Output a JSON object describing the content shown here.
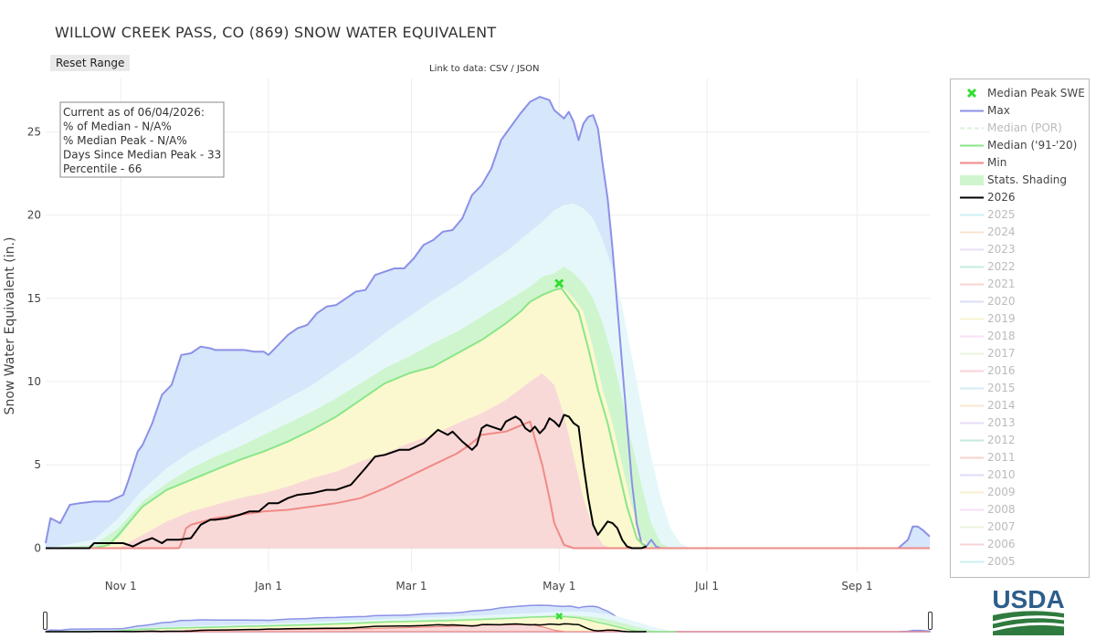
{
  "page": {
    "title": "WILLOW CREEK PASS, CO (869) SNOW WATER EQUIVALENT",
    "reset_label": "Reset Range",
    "links_prefix": "Link to data: ",
    "link_csv": "CSV",
    "link_sep": " / ",
    "link_json": "JSON"
  },
  "info_box": {
    "lines": [
      "Current as of 06/04/2026:",
      "% of Median - N/A%",
      "% Median Peak - N/A%",
      "Days Since Median Peak - 33",
      "Percentile - 66"
    ]
  },
  "logo_text": "USDA",
  "colors": {
    "max": "#8c91e6",
    "median": "#8ae68a",
    "min": "#ef8a86",
    "current": "#000000",
    "median_peak": "#33dd33",
    "shade_max": "#d6e6fb",
    "shade_80": "#e6f7fa",
    "shade_70": "#cff5cf",
    "shade_50": "#fbf8cf",
    "shade_30": "#f9d9d7"
  },
  "chart_data": {
    "type": "line",
    "title": "WILLOW CREEK PASS, CO (869) SNOW WATER EQUIVALENT",
    "xlabel": "",
    "ylabel": "Snow Water Equivalent (in.)",
    "x_unit": "days since Oct 1",
    "xlim": [
      0,
      365
    ],
    "ylim": [
      -1.4,
      28.2
    ],
    "x_ticks": [
      {
        "x": 31,
        "label": "Nov 1"
      },
      {
        "x": 92,
        "label": "Jan 1"
      },
      {
        "x": 151,
        "label": "Mar 1"
      },
      {
        "x": 212,
        "label": "May 1"
      },
      {
        "x": 273,
        "label": "Jul 1"
      },
      {
        "x": 335,
        "label": "Sep 1"
      }
    ],
    "y_ticks": [
      0,
      5,
      10,
      15,
      20,
      25
    ],
    "grid": true,
    "legend_position": "right",
    "series": [
      {
        "name": "Max",
        "x": [
          0,
          2,
          6,
          10,
          14,
          20,
          26,
          32,
          34,
          38,
          40,
          44,
          48,
          52,
          56,
          60,
          64,
          68,
          70,
          74,
          78,
          82,
          86,
          90,
          92,
          96,
          100,
          104,
          108,
          112,
          116,
          120,
          124,
          128,
          132,
          136,
          140,
          144,
          148,
          152,
          156,
          160,
          164,
          168,
          172,
          176,
          180,
          184,
          188,
          192,
          196,
          200,
          204,
          208,
          210,
          214,
          216,
          218,
          220,
          222,
          224,
          226,
          228,
          230,
          232,
          234,
          238,
          240,
          242,
          244,
          246,
          248,
          250,
          252,
          254,
          256,
          258,
          260,
          262,
          264,
          266,
          268,
          270,
          290,
          320,
          340,
          352,
          356,
          358,
          360,
          362,
          365
        ],
        "values": [
          0.3,
          1.8,
          1.5,
          2.6,
          2.7,
          2.8,
          2.8,
          3.2,
          4.0,
          5.8,
          6.2,
          7.5,
          9.2,
          9.8,
          11.6,
          11.7,
          12.1,
          12.0,
          11.9,
          11.9,
          11.9,
          11.9,
          11.8,
          11.8,
          11.6,
          12.2,
          12.8,
          13.2,
          13.4,
          14.1,
          14.5,
          14.6,
          15.0,
          15.4,
          15.5,
          16.4,
          16.6,
          16.8,
          16.8,
          17.4,
          18.2,
          18.5,
          19.0,
          19.1,
          19.8,
          21.2,
          21.8,
          22.8,
          24.5,
          25.3,
          26.1,
          26.8,
          27.1,
          26.9,
          26.3,
          25.8,
          26.2,
          25.6,
          24.5,
          25.5,
          25.9,
          26.0,
          25.2,
          23.0,
          21.0,
          18.0,
          11.0,
          7.5,
          4.0,
          1.5,
          0.3,
          0.1,
          0.5,
          0.1,
          0.0,
          0.0,
          0.0,
          0.0,
          0.0,
          0.0,
          0.0,
          0.0,
          0.0,
          0.0,
          0.0,
          0.0,
          0.0,
          0.5,
          1.3,
          1.3,
          1.1,
          0.7
        ]
      },
      {
        "name": "Median ('91-'20)",
        "x": [
          0,
          10,
          20,
          26,
          30,
          40,
          50,
          60,
          70,
          80,
          90,
          100,
          110,
          120,
          130,
          140,
          150,
          160,
          170,
          180,
          190,
          196,
          200,
          205,
          210,
          213,
          216,
          220,
          224,
          228,
          232,
          236,
          240,
          244,
          248,
          252,
          256,
          260
        ],
        "values": [
          0.0,
          0.0,
          0.0,
          0.2,
          0.8,
          2.5,
          3.5,
          4.1,
          4.7,
          5.3,
          5.8,
          6.4,
          7.1,
          7.9,
          8.9,
          9.9,
          10.5,
          10.9,
          11.7,
          12.5,
          13.5,
          14.2,
          14.8,
          15.2,
          15.5,
          15.6,
          15.0,
          14.2,
          12.0,
          9.5,
          7.5,
          5.0,
          2.5,
          0.6,
          0.0,
          0.0,
          0.0,
          0.0
        ]
      },
      {
        "name": "Min",
        "x": [
          0,
          40,
          50,
          55,
          56,
          58,
          60,
          70,
          80,
          90,
          100,
          110,
          120,
          130,
          140,
          150,
          160,
          170,
          175,
          180,
          190,
          195,
          200,
          205,
          208,
          210,
          214,
          218,
          220,
          240,
          300,
          365
        ],
        "values": [
          0.0,
          0.0,
          0.0,
          0.0,
          0.3,
          1.2,
          1.4,
          1.8,
          2.0,
          2.2,
          2.3,
          2.5,
          2.7,
          3.0,
          3.6,
          4.3,
          5.0,
          5.7,
          6.2,
          6.8,
          7.0,
          7.3,
          7.6,
          5.0,
          3.0,
          1.5,
          0.2,
          0.0,
          0.0,
          0.0,
          0.0,
          0.0
        ]
      },
      {
        "name": "2026",
        "x": [
          0,
          18,
          20,
          32,
          36,
          40,
          44,
          48,
          50,
          55,
          60,
          64,
          68,
          70,
          75,
          80,
          84,
          88,
          92,
          96,
          100,
          104,
          110,
          116,
          120,
          126,
          132,
          136,
          140,
          146,
          150,
          156,
          162,
          166,
          168,
          172,
          176,
          178,
          180,
          182,
          184,
          188,
          190,
          194,
          196,
          198,
          200,
          202,
          204,
          206,
          208,
          210,
          212,
          214,
          216,
          218,
          220,
          222,
          224,
          226,
          228,
          230,
          232,
          234,
          236,
          238,
          240,
          242,
          244,
          246,
          248
        ],
        "values": [
          0.0,
          0.0,
          0.3,
          0.3,
          0.1,
          0.4,
          0.6,
          0.3,
          0.5,
          0.5,
          0.6,
          1.4,
          1.7,
          1.7,
          1.8,
          2.0,
          2.2,
          2.2,
          2.7,
          2.7,
          3.0,
          3.2,
          3.3,
          3.5,
          3.5,
          3.8,
          4.8,
          5.5,
          5.6,
          5.9,
          5.9,
          6.3,
          7.1,
          6.8,
          7.0,
          6.4,
          5.9,
          6.2,
          7.2,
          7.4,
          7.3,
          7.1,
          7.6,
          7.9,
          7.7,
          7.2,
          7.0,
          7.3,
          6.9,
          7.2,
          7.8,
          7.6,
          7.3,
          8.0,
          7.9,
          7.5,
          7.3,
          5.0,
          3.0,
          1.4,
          0.8,
          1.2,
          1.6,
          1.5,
          1.2,
          0.5,
          0.1,
          0.0,
          0.0,
          0.0,
          0.1
        ]
      }
    ],
    "percentile_bands": {
      "x": [
        0,
        20,
        30,
        40,
        50,
        60,
        70,
        80,
        90,
        100,
        110,
        120,
        130,
        140,
        150,
        160,
        170,
        180,
        190,
        200,
        205,
        210,
        214,
        218,
        222,
        226,
        230,
        234,
        238,
        242,
        246,
        250,
        254,
        258,
        262,
        266,
        270
      ],
      "p90": [
        0.0,
        0.5,
        1.8,
        3.5,
        4.8,
        5.8,
        6.6,
        7.4,
        8.2,
        9.0,
        9.8,
        10.8,
        11.8,
        12.9,
        13.9,
        14.9,
        15.8,
        16.8,
        17.8,
        19.0,
        19.6,
        20.3,
        20.6,
        20.7,
        20.4,
        19.8,
        18.5,
        16.8,
        14.5,
        11.5,
        8.5,
        5.5,
        3.0,
        1.2,
        0.3,
        0.0,
        0.0
      ],
      "p70": [
        0.0,
        0.2,
        1.2,
        2.8,
        3.9,
        4.8,
        5.5,
        6.1,
        6.8,
        7.5,
        8.2,
        9.0,
        9.9,
        10.8,
        11.5,
        12.3,
        13.0,
        13.9,
        14.8,
        15.7,
        16.3,
        16.5,
        16.9,
        16.5,
        15.9,
        15.0,
        13.5,
        11.5,
        9.0,
        6.3,
        3.8,
        1.5,
        0.3,
        0.0,
        0.0,
        0.0,
        0.0
      ],
      "p50": [
        0.0,
        0.0,
        0.6,
        2.5,
        3.5,
        4.1,
        4.7,
        5.3,
        5.8,
        6.4,
        7.1,
        7.9,
        8.9,
        9.9,
        10.5,
        10.9,
        11.7,
        12.5,
        13.5,
        14.8,
        15.2,
        15.5,
        15.6,
        15.0,
        14.2,
        12.0,
        9.5,
        7.5,
        5.0,
        2.5,
        0.6,
        0.0,
        0.0,
        0.0,
        0.0,
        0.0,
        0.0
      ],
      "p30": [
        0.0,
        0.0,
        0.2,
        1.8,
        2.8,
        3.4,
        3.9,
        4.4,
        4.9,
        5.4,
        6.0,
        6.7,
        7.6,
        8.4,
        9.0,
        9.5,
        10.1,
        10.9,
        11.8,
        12.7,
        13.1,
        13.3,
        13.0,
        12.0,
        10.3,
        7.6,
        4.8,
        2.3,
        0.6,
        0.0,
        0.0,
        0.0,
        0.0,
        0.0,
        0.0,
        0.0,
        0.0
      ],
      "p10": [
        0.0,
        0.0,
        0.0,
        0.8,
        1.6,
        2.2,
        2.6,
        3.0,
        3.3,
        3.7,
        4.2,
        4.6,
        5.2,
        5.7,
        6.3,
        6.8,
        7.5,
        8.1,
        8.9,
        10.0,
        10.5,
        9.8,
        8.0,
        5.5,
        3.0,
        1.2,
        0.2,
        0.0,
        0.0,
        0.0,
        0.0,
        0.0,
        0.0,
        0.0,
        0.0,
        0.0,
        0.0
      ]
    },
    "median_peak": {
      "name": "Median Peak SWE",
      "x": 212,
      "value": 15.9
    }
  },
  "legend": {
    "items": [
      {
        "label": "Median Peak SWE",
        "symbol": "x-marker",
        "color": "#33dd33",
        "active": true
      },
      {
        "label": "Max",
        "symbol": "line",
        "color": "#8c91e6",
        "active": true
      },
      {
        "label": "Median (POR)",
        "symbol": "dash",
        "color": "#d9f2d9",
        "active": false
      },
      {
        "label": "Median ('91-'20)",
        "symbol": "line",
        "color": "#8ae68a",
        "active": true
      },
      {
        "label": "Min",
        "symbol": "line",
        "color": "#ef8a86",
        "active": true
      },
      {
        "label": "Stats. Shading",
        "symbol": "band",
        "color": "#cff5cf",
        "active": true
      },
      {
        "label": "2026",
        "symbol": "line",
        "color": "#000000",
        "active": true
      },
      {
        "label": "2025",
        "symbol": "line",
        "color": "#9fe3e6",
        "active": false
      },
      {
        "label": "2024",
        "symbol": "line",
        "color": "#f7c9a5",
        "active": false
      },
      {
        "label": "2023",
        "symbol": "line",
        "color": "#d6bdf0",
        "active": false
      },
      {
        "label": "2022",
        "symbol": "line",
        "color": "#8ad9c0",
        "active": false
      },
      {
        "label": "2021",
        "symbol": "line",
        "color": "#f2aaa3",
        "active": false
      },
      {
        "label": "2020",
        "symbol": "line",
        "color": "#b9bdf0",
        "active": false
      },
      {
        "label": "2019",
        "symbol": "line",
        "color": "#f7eba5",
        "active": false
      },
      {
        "label": "2018",
        "symbol": "line",
        "color": "#f5c1f0",
        "active": false
      },
      {
        "label": "2017",
        "symbol": "line",
        "color": "#d9eabb",
        "active": false
      },
      {
        "label": "2016",
        "symbol": "line",
        "color": "#f5a9b0",
        "active": false
      },
      {
        "label": "2015",
        "symbol": "line",
        "color": "#a9dcec",
        "active": false
      },
      {
        "label": "2014",
        "symbol": "line",
        "color": "#f7d2a5",
        "active": false
      },
      {
        "label": "2013",
        "symbol": "line",
        "color": "#d3bdf0",
        "active": false
      },
      {
        "label": "2012",
        "symbol": "line",
        "color": "#8ad9b8",
        "active": false
      },
      {
        "label": "2011",
        "symbol": "line",
        "color": "#eea8a0",
        "active": false
      },
      {
        "label": "2010",
        "symbol": "line",
        "color": "#b9bdf0",
        "active": false
      },
      {
        "label": "2009",
        "symbol": "line",
        "color": "#f5e5a5",
        "active": false
      },
      {
        "label": "2008",
        "symbol": "line",
        "color": "#f5c1f0",
        "active": false
      },
      {
        "label": "2007",
        "symbol": "line",
        "color": "#d9eabb",
        "active": false
      },
      {
        "label": "2006",
        "symbol": "line",
        "color": "#f5a9b0",
        "active": false
      },
      {
        "label": "2005",
        "symbol": "line",
        "color": "#9fe3e6",
        "active": false
      }
    ]
  }
}
